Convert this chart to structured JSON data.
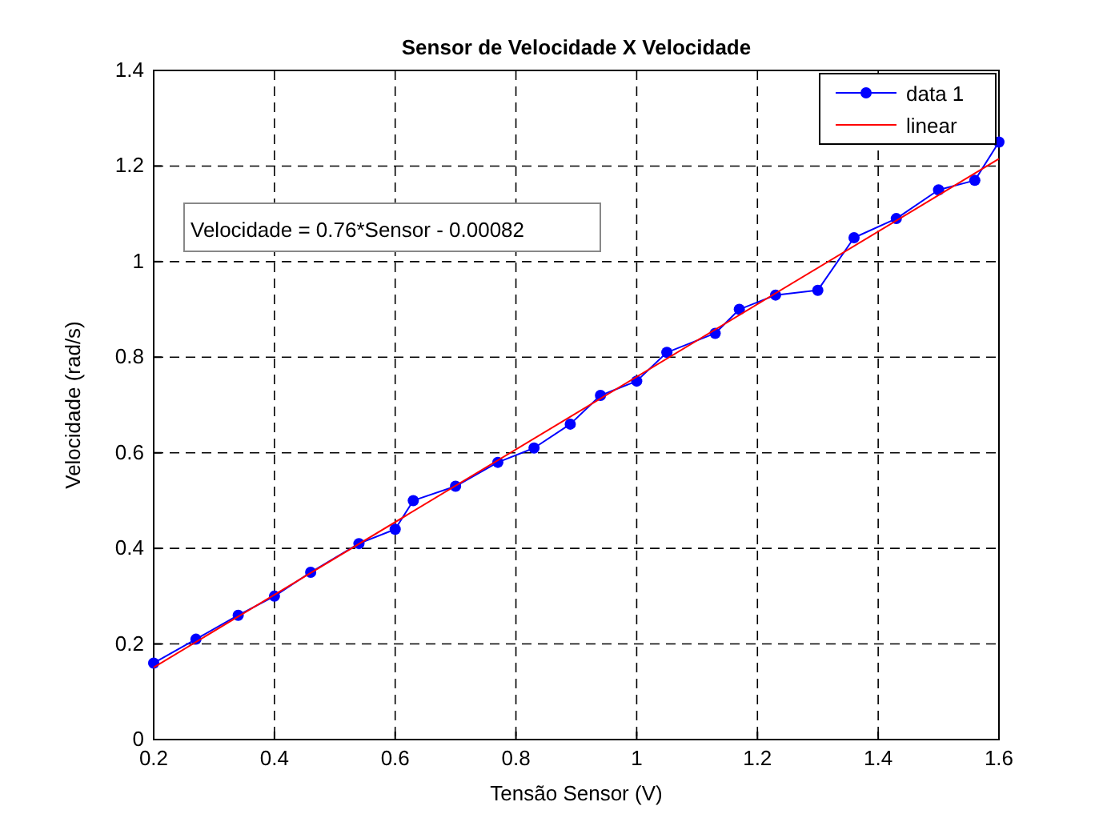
{
  "chart_data": {
    "type": "line",
    "title": "Sensor de Velocidade X Velocidade",
    "xlabel": "Tensão Sensor (V)",
    "ylabel": "Velocidade (rad/s)",
    "xlim": [
      0.2,
      1.6
    ],
    "xticks": [
      0.2,
      0.4,
      0.6,
      0.8,
      1,
      1.2,
      1.4,
      1.6
    ],
    "ylim": [
      0,
      1.4
    ],
    "yticks": [
      0,
      0.2,
      0.4,
      0.6,
      0.8,
      1,
      1.2,
      1.4
    ],
    "grid": true,
    "legend": "top right",
    "annotations": [
      "Velocidade = 0.76*Sensor - 0.00082"
    ],
    "series": [
      {
        "name": "data 1",
        "color": "#0000ff",
        "marker": "circle",
        "x": [
          0.2,
          0.27,
          0.34,
          0.4,
          0.46,
          0.54,
          0.6,
          0.63,
          0.7,
          0.77,
          0.83,
          0.89,
          0.94,
          1.0,
          1.05,
          1.13,
          1.17,
          1.23,
          1.3,
          1.36,
          1.43,
          1.5,
          1.56,
          1.6
        ],
        "values": [
          0.16,
          0.21,
          0.26,
          0.3,
          0.35,
          0.41,
          0.44,
          0.5,
          0.53,
          0.58,
          0.61,
          0.66,
          0.72,
          0.75,
          0.81,
          0.85,
          0.9,
          0.93,
          0.94,
          1.05,
          1.09,
          1.15,
          1.17,
          1.25
        ]
      },
      {
        "name": "linear",
        "color": "#ff0000",
        "marker": "none",
        "x": [
          0.2,
          1.6
        ],
        "values": [
          0.151,
          1.215
        ]
      }
    ]
  }
}
